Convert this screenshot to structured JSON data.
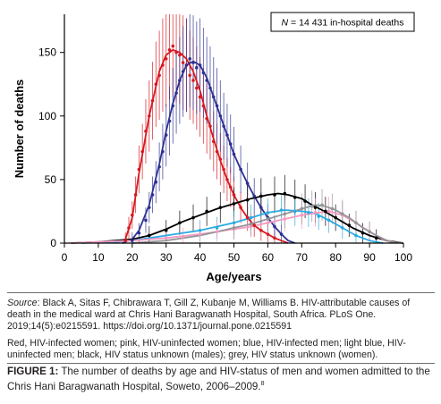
{
  "chart_data": {
    "type": "line",
    "annotation": "N = 14 431 in-hospital deaths",
    "annotation_parts": {
      "italic": "N",
      "rest": " = 14 431 in-hospital deaths"
    },
    "xlabel": "Age/years",
    "ylabel": "Number of deaths",
    "xlim": [
      0,
      100
    ],
    "ylim": [
      0,
      180
    ],
    "xticks": [
      0,
      10,
      20,
      30,
      40,
      50,
      60,
      70,
      80,
      90,
      100
    ],
    "yticks": [
      0,
      50,
      100,
      150
    ],
    "grid": false,
    "series": [
      {
        "color": "#d71920",
        "curve": [
          [
            15,
            0
          ],
          [
            18,
            3
          ],
          [
            20,
            20
          ],
          [
            22,
            55
          ],
          [
            25,
            100
          ],
          [
            28,
            135
          ],
          [
            30,
            148
          ],
          [
            32,
            152
          ],
          [
            34,
            150
          ],
          [
            36,
            145
          ],
          [
            38,
            135
          ],
          [
            40,
            120
          ],
          [
            42,
            100
          ],
          [
            44,
            82
          ],
          [
            46,
            65
          ],
          [
            48,
            50
          ],
          [
            50,
            38
          ],
          [
            52,
            28
          ],
          [
            54,
            20
          ],
          [
            56,
            14
          ],
          [
            58,
            10
          ],
          [
            60,
            7
          ],
          [
            62,
            4
          ],
          [
            64,
            2
          ],
          [
            66,
            0
          ]
        ],
        "points": [
          [
            18,
            2
          ],
          [
            19,
            12
          ],
          [
            20,
            22
          ],
          [
            21,
            38
          ],
          [
            22,
            58
          ],
          [
            23,
            72
          ],
          [
            24,
            88
          ],
          [
            25,
            100
          ],
          [
            26,
            112
          ],
          [
            27,
            125
          ],
          [
            28,
            132
          ],
          [
            29,
            140
          ],
          [
            30,
            145
          ],
          [
            31,
            152
          ],
          [
            32,
            155
          ],
          [
            33,
            150
          ],
          [
            34,
            148
          ],
          [
            35,
            142
          ],
          [
            36,
            140
          ],
          [
            37,
            132
          ],
          [
            38,
            128
          ],
          [
            39,
            122
          ],
          [
            40,
            115
          ],
          [
            41,
            108
          ],
          [
            42,
            98
          ],
          [
            43,
            92
          ],
          [
            44,
            80
          ],
          [
            45,
            72
          ],
          [
            46,
            66
          ],
          [
            47,
            58
          ],
          [
            48,
            50
          ],
          [
            49,
            44
          ],
          [
            50,
            38
          ],
          [
            52,
            28
          ],
          [
            54,
            20
          ],
          [
            56,
            14
          ],
          [
            58,
            10
          ],
          [
            60,
            7
          ],
          [
            62,
            4
          ]
        ]
      },
      {
        "color": "#2e3192",
        "curve": [
          [
            17,
            0
          ],
          [
            20,
            3
          ],
          [
            22,
            10
          ],
          [
            25,
            30
          ],
          [
            28,
            62
          ],
          [
            30,
            88
          ],
          [
            32,
            110
          ],
          [
            34,
            128
          ],
          [
            36,
            140
          ],
          [
            38,
            143
          ],
          [
            40,
            140
          ],
          [
            42,
            130
          ],
          [
            44,
            115
          ],
          [
            46,
            100
          ],
          [
            48,
            85
          ],
          [
            50,
            70
          ],
          [
            52,
            58
          ],
          [
            54,
            47
          ],
          [
            56,
            37
          ],
          [
            58,
            28
          ],
          [
            60,
            20
          ],
          [
            62,
            13
          ],
          [
            64,
            7
          ],
          [
            66,
            2
          ],
          [
            68,
            0
          ]
        ],
        "points": [
          [
            20,
            2
          ],
          [
            22,
            8
          ],
          [
            24,
            18
          ],
          [
            25,
            28
          ],
          [
            26,
            38
          ],
          [
            27,
            48
          ],
          [
            28,
            60
          ],
          [
            29,
            72
          ],
          [
            30,
            85
          ],
          [
            31,
            96
          ],
          [
            32,
            108
          ],
          [
            33,
            118
          ],
          [
            34,
            128
          ],
          [
            35,
            135
          ],
          [
            36,
            140
          ],
          [
            37,
            145
          ],
          [
            38,
            142
          ],
          [
            39,
            138
          ],
          [
            40,
            140
          ],
          [
            41,
            134
          ],
          [
            42,
            128
          ],
          [
            43,
            122
          ],
          [
            44,
            115
          ],
          [
            45,
            108
          ],
          [
            46,
            100
          ],
          [
            47,
            92
          ],
          [
            48,
            85
          ],
          [
            49,
            78
          ],
          [
            50,
            70
          ],
          [
            52,
            58
          ],
          [
            54,
            47
          ],
          [
            56,
            37
          ],
          [
            58,
            28
          ],
          [
            60,
            20
          ],
          [
            62,
            13
          ],
          [
            64,
            7
          ]
        ]
      },
      {
        "color": "#000000",
        "curve": [
          [
            2,
            0
          ],
          [
            10,
            1
          ],
          [
            20,
            3
          ],
          [
            25,
            6
          ],
          [
            30,
            11
          ],
          [
            35,
            17
          ],
          [
            40,
            22
          ],
          [
            45,
            27
          ],
          [
            50,
            31
          ],
          [
            55,
            35
          ],
          [
            60,
            38
          ],
          [
            63,
            39
          ],
          [
            66,
            38
          ],
          [
            70,
            35
          ],
          [
            73,
            30
          ],
          [
            76,
            26
          ],
          [
            80,
            20
          ],
          [
            85,
            12
          ],
          [
            90,
            6
          ],
          [
            95,
            2
          ],
          [
            100,
            0
          ]
        ],
        "points": [
          [
            25,
            6
          ],
          [
            30,
            10
          ],
          [
            34,
            16
          ],
          [
            38,
            20
          ],
          [
            42,
            25
          ],
          [
            46,
            28
          ],
          [
            50,
            31
          ],
          [
            54,
            34
          ],
          [
            58,
            37
          ],
          [
            62,
            38
          ],
          [
            65,
            39
          ],
          [
            68,
            36
          ],
          [
            71,
            33
          ],
          [
            74,
            28
          ],
          [
            77,
            25
          ],
          [
            80,
            20
          ],
          [
            84,
            14
          ],
          [
            88,
            8
          ],
          [
            92,
            4
          ]
        ]
      },
      {
        "color": "#29abe2",
        "curve": [
          [
            5,
            0
          ],
          [
            15,
            1
          ],
          [
            20,
            2
          ],
          [
            25,
            4
          ],
          [
            30,
            6
          ],
          [
            35,
            8
          ],
          [
            40,
            10
          ],
          [
            45,
            13
          ],
          [
            50,
            16
          ],
          [
            55,
            20
          ],
          [
            60,
            24
          ],
          [
            65,
            26
          ],
          [
            70,
            25
          ],
          [
            73,
            24
          ],
          [
            75,
            22
          ],
          [
            78,
            18
          ],
          [
            82,
            12
          ],
          [
            86,
            6
          ],
          [
            90,
            2
          ],
          [
            94,
            0
          ]
        ],
        "points": [
          [
            40,
            10
          ],
          [
            45,
            12
          ],
          [
            50,
            16
          ],
          [
            55,
            20
          ],
          [
            60,
            24
          ],
          [
            64,
            26
          ],
          [
            68,
            25
          ],
          [
            72,
            24
          ],
          [
            75,
            21
          ],
          [
            78,
            18
          ],
          [
            82,
            12
          ],
          [
            86,
            6
          ]
        ]
      },
      {
        "color": "#f49ac1",
        "curve": [
          [
            2,
            0
          ],
          [
            10,
            1
          ],
          [
            20,
            2
          ],
          [
            30,
            4
          ],
          [
            40,
            7
          ],
          [
            50,
            11
          ],
          [
            55,
            13
          ],
          [
            60,
            16
          ],
          [
            65,
            19
          ],
          [
            70,
            22
          ],
          [
            75,
            24
          ],
          [
            78,
            25
          ],
          [
            82,
            22
          ],
          [
            86,
            16
          ],
          [
            90,
            9
          ],
          [
            94,
            3
          ],
          [
            98,
            0
          ]
        ],
        "points": [
          [
            30,
            4
          ],
          [
            35,
            5
          ],
          [
            40,
            7
          ],
          [
            45,
            9
          ],
          [
            50,
            11
          ],
          [
            55,
            13
          ],
          [
            60,
            16
          ],
          [
            65,
            19
          ],
          [
            70,
            22
          ],
          [
            74,
            24
          ],
          [
            78,
            25
          ],
          [
            82,
            22
          ],
          [
            86,
            16
          ],
          [
            90,
            9
          ]
        ]
      },
      {
        "color": "#939598",
        "curve": [
          [
            20,
            0
          ],
          [
            30,
            2
          ],
          [
            40,
            6
          ],
          [
            45,
            9
          ],
          [
            50,
            12
          ],
          [
            55,
            15
          ],
          [
            60,
            19
          ],
          [
            65,
            23
          ],
          [
            70,
            27
          ],
          [
            74,
            30
          ],
          [
            77,
            29
          ],
          [
            80,
            26
          ],
          [
            84,
            20
          ],
          [
            88,
            12
          ],
          [
            92,
            6
          ],
          [
            96,
            1
          ],
          [
            100,
            0
          ]
        ],
        "points": [
          [
            50,
            12
          ],
          [
            55,
            15
          ],
          [
            60,
            19
          ],
          [
            65,
            23
          ],
          [
            70,
            27
          ],
          [
            73,
            29
          ],
          [
            76,
            30
          ],
          [
            79,
            27
          ],
          [
            82,
            23
          ],
          [
            86,
            16
          ],
          [
            90,
            9
          ]
        ]
      }
    ]
  },
  "source_label": "Source",
  "source_text": ": Black A, Sitas F, Chibrawara T, Gill Z, Kubanje M, Williams B. HIV-attributable causes of death in the medical ward at Chris Hani Baragwanath Hospital, South Africa. PLoS One. 2019;14(5):e0215591. https://doi.org/10.1371/journal.pone.0215591",
  "legend_note": "Red, HIV-infected women; pink, HIV-uninfected women; blue, HIV-infected men; light blue, HIV-uninfected men; black, HIV status unknown (males); grey, HIV status unknown (women).",
  "figure_caption_label": "FIGURE 1:",
  "figure_caption_text": " The number of deaths by age and HIV-status of men and women admitted to the Chris Hani Baragwanath Hospital, Soweto, 2006–2009.",
  "figure_caption_ref": "8"
}
